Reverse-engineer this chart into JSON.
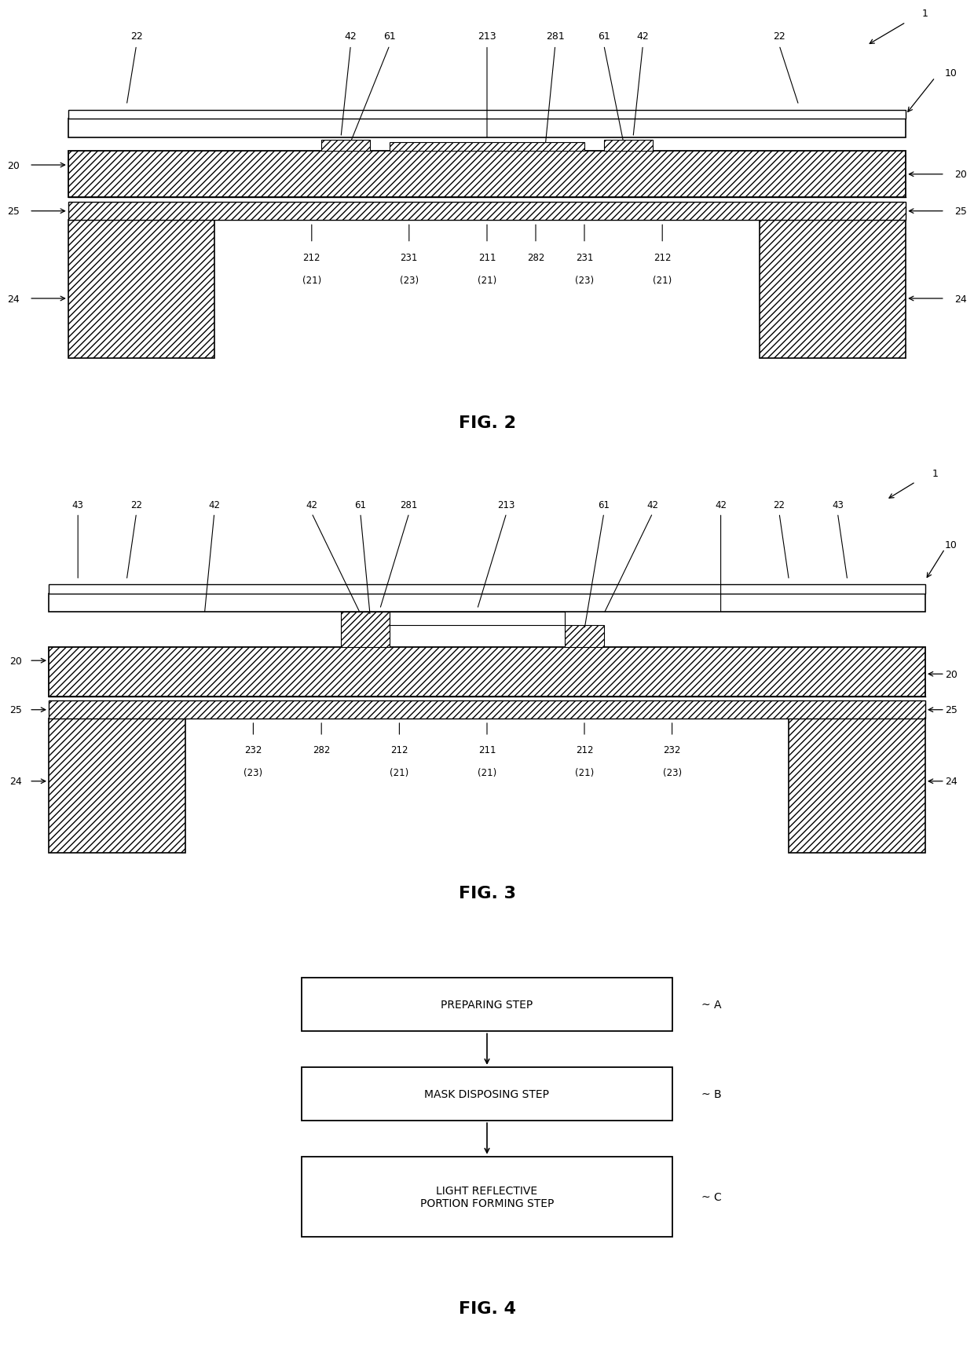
{
  "bg_color": "#ffffff",
  "fig2_caption": "FIG. 2",
  "fig3_caption": "FIG. 3",
  "fig4_caption": "FIG. 4",
  "fig4_steps": [
    "PREPARING STEP",
    "MASK DISPOSING STEP",
    "LIGHT REFLECTIVE\nPORTION FORMING STEP"
  ],
  "fig4_step_labels": [
    "A",
    "B",
    "C"
  ]
}
